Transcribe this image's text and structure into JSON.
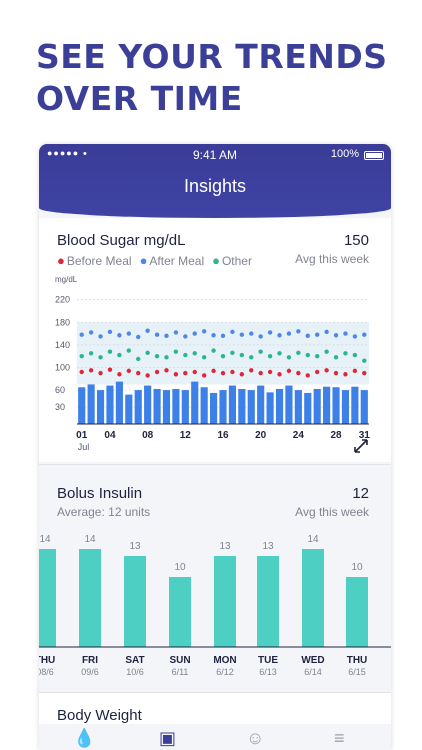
{
  "headline": [
    "SEE YOUR TRENDS",
    "OVER TIME"
  ],
  "status_bar": {
    "signal": "●●●●●",
    "time": "9:41 AM",
    "battery": "100%"
  },
  "app_title": "Insights",
  "blood_sugar": {
    "title": "Blood Sugar mg/dL",
    "avg_value": "150",
    "avg_label": "Avg this week",
    "legend": [
      {
        "label": "Before Meal",
        "color": "#e0263a"
      },
      {
        "label": "After Meal",
        "color": "#4f86ee"
      },
      {
        "label": "Other",
        "color": "#2cb58e"
      }
    ],
    "unit_label": "mg/dL",
    "y_ticks": [
      "220",
      "180",
      "140",
      "100",
      "60",
      "30"
    ],
    "x_ticks": [
      "01",
      "04",
      "08",
      "12",
      "16",
      "20",
      "24",
      "28",
      "31"
    ],
    "month_label": "Jul",
    "expand_icon": "expand-icon"
  },
  "bolus": {
    "title": "Bolus Insulin",
    "subtitle": "Average: 12 units",
    "avg_value": "12",
    "avg_label": "Avg this week"
  },
  "body_weight": {
    "title": "Body Weight"
  },
  "nav_icons": [
    "drop-icon",
    "chart-icon",
    "smile-icon",
    "menu-icon"
  ],
  "chart_data": [
    {
      "type": "bar",
      "title": "Blood Sugar mg/dL",
      "ylabel": "mg/dL",
      "ylim": [
        0,
        230
      ],
      "x": [
        1,
        2,
        3,
        4,
        5,
        6,
        7,
        8,
        9,
        10,
        11,
        12,
        13,
        14,
        15,
        16,
        17,
        18,
        19,
        20,
        21,
        22,
        23,
        24,
        25,
        26,
        27,
        28,
        29,
        30,
        31
      ],
      "bars": [
        65,
        70,
        60,
        68,
        75,
        52,
        60,
        68,
        62,
        60,
        62,
        60,
        75,
        65,
        55,
        60,
        68,
        62,
        60,
        68,
        56,
        62,
        68,
        60,
        55,
        62,
        66,
        65,
        60,
        66,
        60
      ],
      "series": [
        {
          "name": "Before Meal",
          "values": [
            92,
            95,
            90,
            96,
            88,
            94,
            90,
            86,
            92,
            95,
            88,
            90,
            92,
            86,
            94,
            90,
            92,
            88,
            95,
            90,
            92,
            88,
            94,
            90,
            86,
            92,
            95,
            90,
            88,
            94,
            90
          ]
        },
        {
          "name": "After Meal",
          "values": [
            158,
            162,
            155,
            163,
            157,
            160,
            154,
            165,
            158,
            156,
            162,
            155,
            160,
            164,
            157,
            156,
            163,
            158,
            160,
            155,
            162,
            157,
            160,
            164,
            156,
            158,
            163,
            157,
            160,
            155,
            158
          ]
        },
        {
          "name": "Other",
          "values": [
            120,
            125,
            118,
            128,
            122,
            130,
            115,
            126,
            120,
            118,
            128,
            122,
            125,
            118,
            130,
            120,
            126,
            122,
            118,
            128,
            120,
            125,
            118,
            126,
            122,
            120,
            128,
            118,
            125,
            122,
            112
          ]
        }
      ],
      "xlabel": "",
      "legend": "top-left"
    },
    {
      "type": "bar",
      "title": "Bolus Insulin",
      "categories": [
        [
          "THU",
          "08/6"
        ],
        [
          "FRI",
          "09/6"
        ],
        [
          "SAT",
          "10/6"
        ],
        [
          "SUN",
          "6/11"
        ],
        [
          "MON",
          "6/12"
        ],
        [
          "TUE",
          "6/13"
        ],
        [
          "WED",
          "6/14"
        ],
        [
          "THU",
          "6/15"
        ]
      ],
      "values": [
        14,
        14,
        13,
        10,
        13,
        13,
        14,
        10
      ],
      "ylim": [
        0,
        15
      ]
    }
  ]
}
